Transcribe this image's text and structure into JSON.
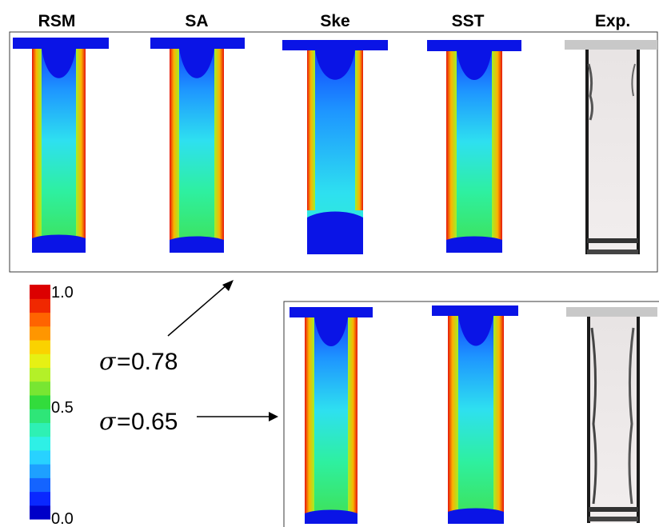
{
  "headers": [
    "RSM",
    "SA",
    "Ske",
    "SST",
    "Exp."
  ],
  "colorbar": {
    "ticks": [
      "1.0",
      "0.5",
      "0.0"
    ],
    "colors": [
      "#0000c8",
      "#0a28ff",
      "#1464ff",
      "#1ea0ff",
      "#28d2ff",
      "#2ef0e6",
      "#2ef0b4",
      "#2ee678",
      "#32dc3c",
      "#78e632",
      "#b4f028",
      "#e6f014",
      "#fad200",
      "#ff9600",
      "#ff6400",
      "#f02800",
      "#dc0000"
    ]
  },
  "annotations": {
    "top": {
      "symbol": "σ",
      "equals": "=",
      "value": "0.78"
    },
    "bottom": {
      "symbol": "σ",
      "equals": "=",
      "value": "0.65"
    }
  },
  "colors": {
    "plate": "#0a14e6",
    "red_band": "#e6140a",
    "frame": "#3a3a3a",
    "exp_plate": "#c8c8c8"
  }
}
